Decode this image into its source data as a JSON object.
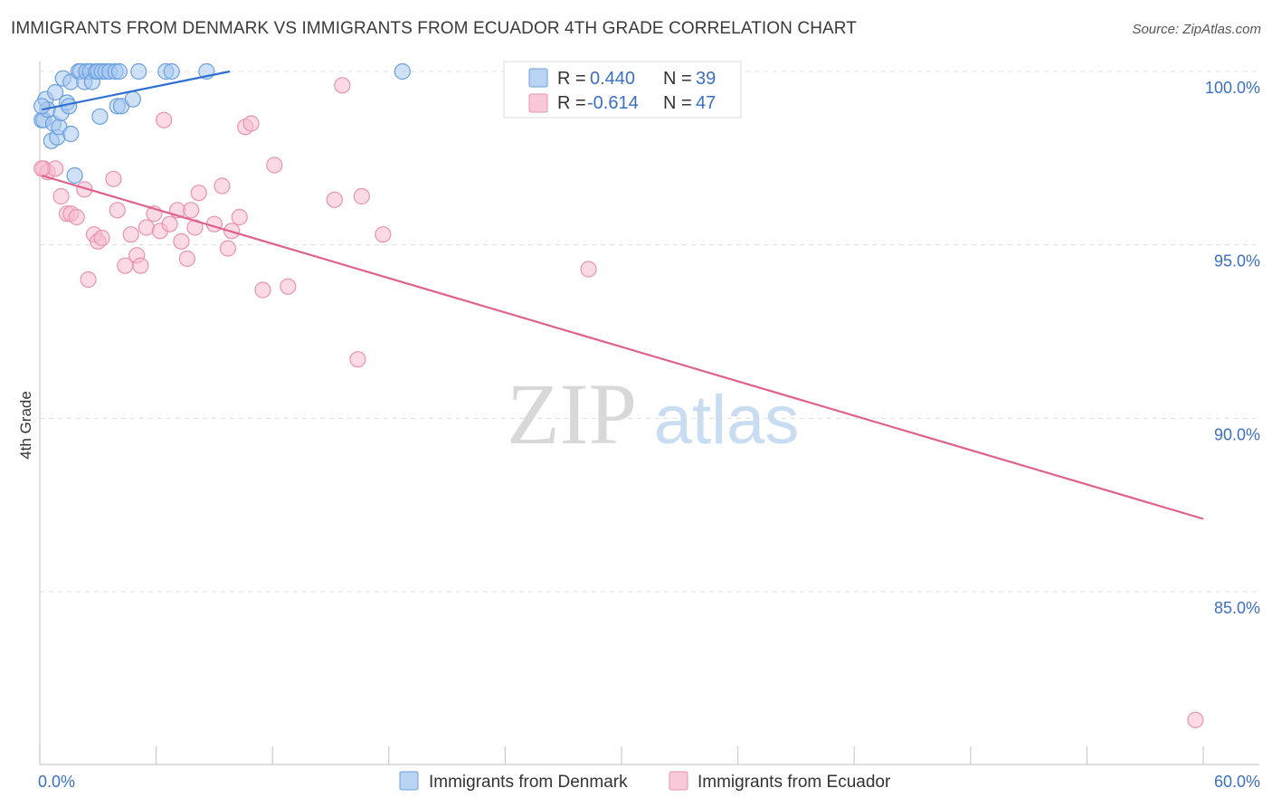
{
  "title": "IMMIGRANTS FROM DENMARK VS IMMIGRANTS FROM ECUADOR 4TH GRADE CORRELATION CHART",
  "source": "Source: ZipAtlas.com",
  "watermark": {
    "zip": "ZIP",
    "atlas": "atlas"
  },
  "legend": [
    {
      "r_label": "R =",
      "r_value": "0.440",
      "n_label": "N =",
      "n_value": "39",
      "color": "#a8c8f0",
      "stroke": "#6a9fe0"
    },
    {
      "r_label": "R =",
      "r_value": "-0.614",
      "n_label": "N =",
      "n_value": "47",
      "color": "#f8bcd0",
      "stroke": "#e892b0"
    }
  ],
  "chart_data": {
    "type": "scatter",
    "xlabel": "",
    "ylabel": "4th Grade",
    "xlim": [
      0,
      60
    ],
    "ylim": [
      80.5,
      100.7
    ],
    "x_tick_labels": [
      {
        "value": 0,
        "label": "0.0%"
      },
      {
        "value": 60,
        "label": "60.0%"
      }
    ],
    "x_minor_ticks": [
      0,
      6,
      12,
      18,
      24,
      30,
      36,
      42,
      48,
      54,
      60
    ],
    "y_ticks": [
      {
        "value": 100,
        "label": "100.0%"
      },
      {
        "value": 95,
        "label": "95.0%"
      },
      {
        "value": 90,
        "label": "90.0%"
      },
      {
        "value": 85,
        "label": "85.0%"
      }
    ],
    "series": [
      {
        "name": "Immigrants from Denmark",
        "color": "#a8c8f0",
        "stroke": "#6a9fe0",
        "trend_color": "#2f6fd0",
        "trend": {
          "x0": 0.1,
          "y0": 98.9,
          "x1": 9.8,
          "y1": 100.0
        },
        "points": [
          [
            0.1,
            98.6
          ],
          [
            0.2,
            98.6
          ],
          [
            0.3,
            99.2
          ],
          [
            0.4,
            98.9
          ],
          [
            0.6,
            98.0
          ],
          [
            0.7,
            98.5
          ],
          [
            0.8,
            99.4
          ],
          [
            0.9,
            98.1
          ],
          [
            1.0,
            98.4
          ],
          [
            1.1,
            98.8
          ],
          [
            1.2,
            99.8
          ],
          [
            1.4,
            99.1
          ],
          [
            1.5,
            99.0
          ],
          [
            1.6,
            98.2
          ],
          [
            1.6,
            99.7
          ],
          [
            1.8,
            97.0
          ],
          [
            2.0,
            100.0
          ],
          [
            2.1,
            100.0
          ],
          [
            2.3,
            99.7
          ],
          [
            2.4,
            100.0
          ],
          [
            2.6,
            100.0
          ],
          [
            2.7,
            99.7
          ],
          [
            2.9,
            100.0
          ],
          [
            3.0,
            100.0
          ],
          [
            3.2,
            100.0
          ],
          [
            3.4,
            100.0
          ],
          [
            3.1,
            98.7
          ],
          [
            3.6,
            100.0
          ],
          [
            3.9,
            100.0
          ],
          [
            4.1,
            100.0
          ],
          [
            4.0,
            99.0
          ],
          [
            4.2,
            99.0
          ],
          [
            4.8,
            99.2
          ],
          [
            5.1,
            100.0
          ],
          [
            6.5,
            100.0
          ],
          [
            6.8,
            100.0
          ],
          [
            8.6,
            100.0
          ],
          [
            18.7,
            100.0
          ],
          [
            0.1,
            99.0
          ]
        ]
      },
      {
        "name": "Immigrants from Ecuador",
        "color": "#f8bcd0",
        "stroke": "#e892b0",
        "trend_color": "#e0608e",
        "trend": {
          "x0": 0.1,
          "y0": 97.0,
          "x1": 60.0,
          "y1": 87.1
        },
        "points": [
          [
            0.2,
            97.2
          ],
          [
            0.4,
            97.1
          ],
          [
            0.8,
            97.2
          ],
          [
            1.1,
            96.4
          ],
          [
            1.4,
            95.9
          ],
          [
            1.6,
            95.9
          ],
          [
            1.9,
            95.8
          ],
          [
            2.3,
            96.6
          ],
          [
            2.5,
            94.0
          ],
          [
            2.8,
            95.3
          ],
          [
            3.0,
            95.1
          ],
          [
            3.2,
            95.2
          ],
          [
            3.8,
            96.9
          ],
          [
            4.0,
            96.0
          ],
          [
            4.4,
            94.4
          ],
          [
            4.7,
            95.3
          ],
          [
            5.0,
            94.7
          ],
          [
            5.2,
            94.4
          ],
          [
            5.5,
            95.5
          ],
          [
            5.9,
            95.9
          ],
          [
            6.2,
            95.4
          ],
          [
            6.4,
            98.6
          ],
          [
            6.7,
            95.6
          ],
          [
            7.1,
            96.0
          ],
          [
            7.3,
            95.1
          ],
          [
            7.6,
            94.6
          ],
          [
            7.8,
            96.0
          ],
          [
            8.0,
            95.5
          ],
          [
            8.2,
            96.5
          ],
          [
            9.0,
            95.6
          ],
          [
            9.4,
            96.7
          ],
          [
            9.9,
            95.4
          ],
          [
            10.3,
            95.8
          ],
          [
            10.6,
            98.4
          ],
          [
            10.9,
            98.5
          ],
          [
            11.5,
            93.7
          ],
          [
            12.1,
            97.3
          ],
          [
            12.8,
            93.8
          ],
          [
            15.2,
            96.3
          ],
          [
            15.6,
            99.6
          ],
          [
            16.4,
            91.7
          ],
          [
            16.6,
            96.4
          ],
          [
            17.7,
            95.3
          ],
          [
            28.3,
            94.3
          ],
          [
            59.6,
            81.3
          ],
          [
            0.1,
            97.2
          ],
          [
            9.7,
            94.9
          ]
        ]
      }
    ]
  }
}
